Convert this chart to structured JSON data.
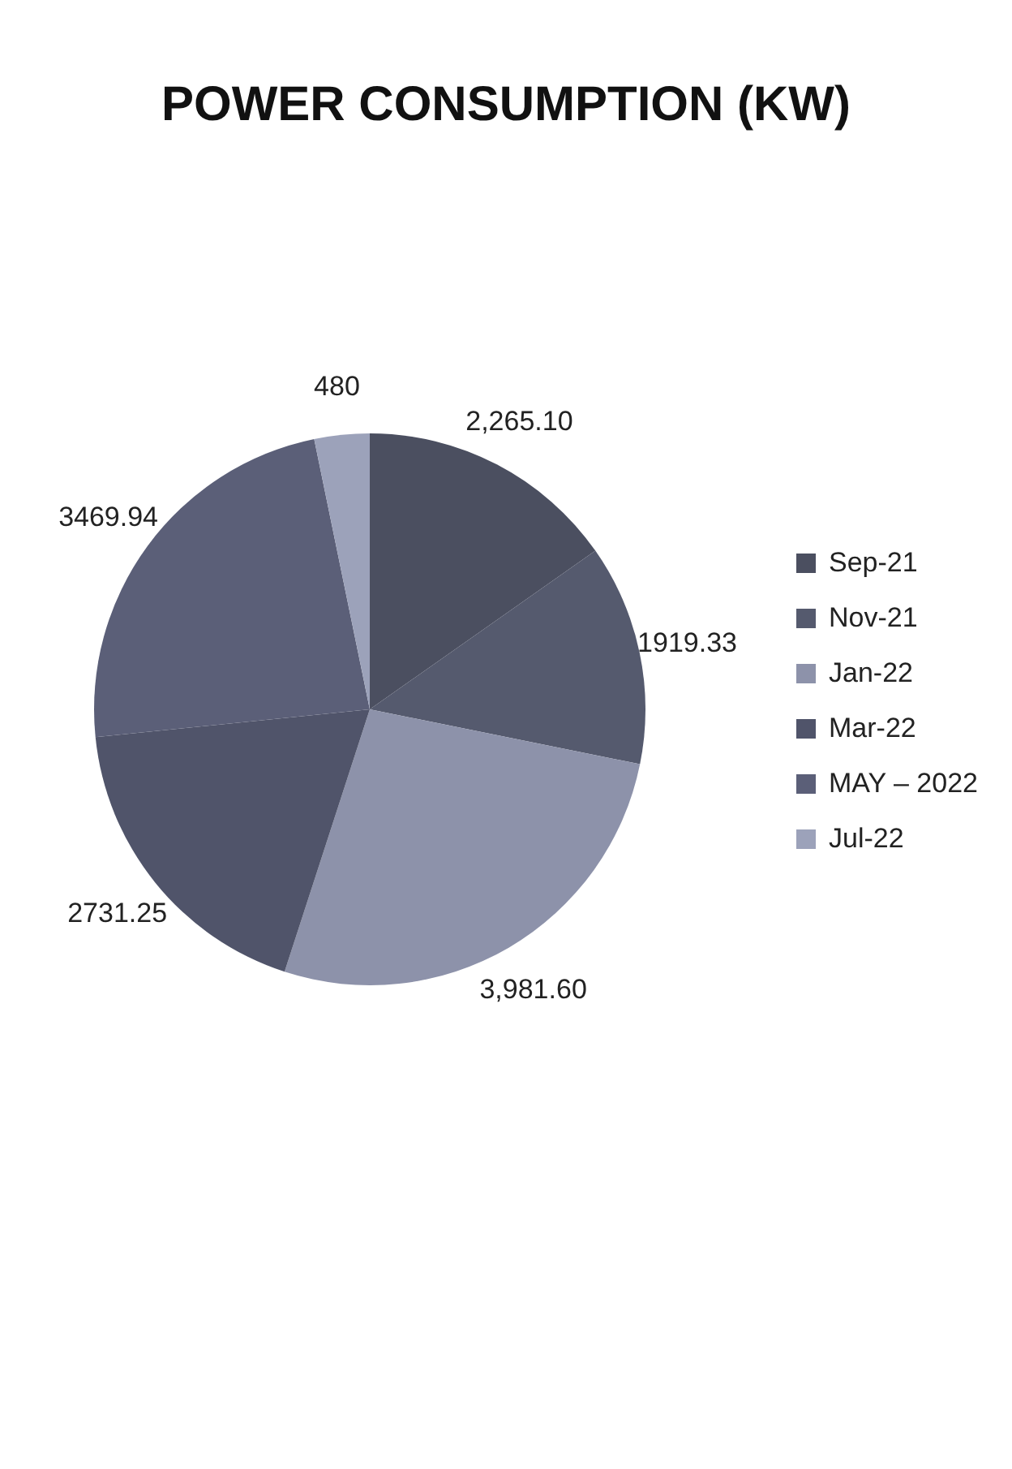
{
  "chart_data": {
    "type": "pie",
    "title": "POWER CONSUMPTION (KW)",
    "categories": [
      "Sep-21",
      "Nov-21",
      "Jan-22",
      "Mar-22",
      "MAY – 2022",
      "Jul-22"
    ],
    "values": [
      2265.1,
      1919.33,
      3981.6,
      2731.25,
      3469.94,
      480
    ],
    "value_labels": [
      "2,265.10",
      "1919.33",
      "3,981.60",
      "2731.25",
      "3469.94",
      "480"
    ],
    "colors": [
      "#4b4f60",
      "#555a6e",
      "#8d92aa",
      "#50546a",
      "#5b5f78",
      "#9ca2ba"
    ],
    "legend": "right"
  }
}
